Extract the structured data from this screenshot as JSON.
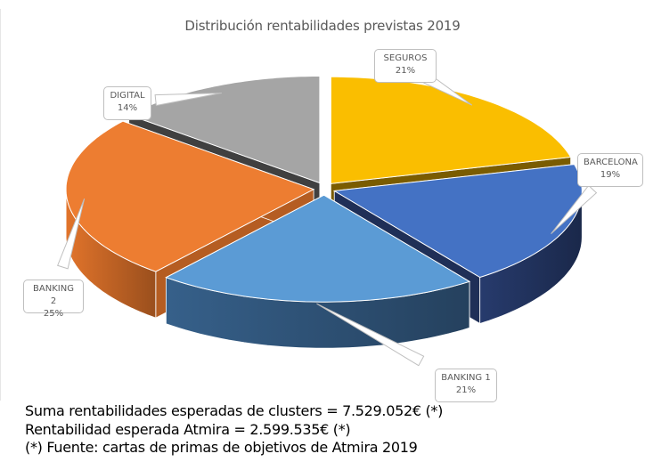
{
  "chart_data": {
    "type": "pie",
    "style": "3d-exploded",
    "title": "Distribución rentabilidades previstas 2019",
    "slices": [
      {
        "label": "SEGUROS",
        "value": 21,
        "display": "21%",
        "color": "#FABE00",
        "side_color": "#7A5C00"
      },
      {
        "label": "BARCELONA",
        "value": 19,
        "display": "19%",
        "color": "#4472C4",
        "side_color": "#1F2F57"
      },
      {
        "label": "BANKING 1",
        "value": 21,
        "display": "21%",
        "color": "#5B9BD5",
        "side_color": "#2B4D6E"
      },
      {
        "label": "BANKING 2",
        "value": 25,
        "display": "25%",
        "color": "#ED7D31",
        "side_color": "#B55D22"
      },
      {
        "label": "DIGITAL",
        "value": 14,
        "display": "14%",
        "color": "#A5A5A5",
        "side_color": "#404040"
      }
    ],
    "start": "top, clockwise",
    "legend": "none",
    "data_labels": "callouts with category name and percentage"
  },
  "notes": [
    "Suma rentabilidades esperadas de clusters = 7.529.052€ (*)",
    "Rentabilidad esperada Atmira = 2.599.535€ (*)",
    "(*) Fuente: cartas de primas de objetivos de Atmira 2019"
  ]
}
